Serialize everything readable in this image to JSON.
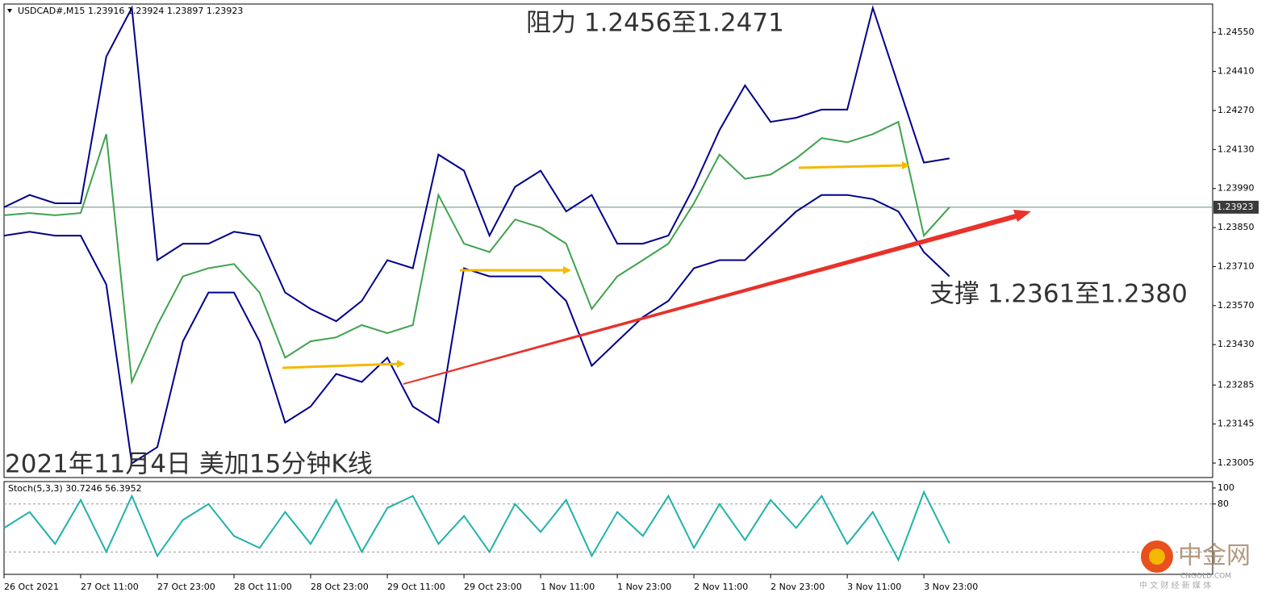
{
  "chart_data": [
    {
      "type": "line",
      "title": "USDCAD#,M15 1.23916 1.23924 1.23897 1.23923",
      "categories": [
        "26 Oct 2021",
        null,
        null,
        "27 Oct 11:00",
        null,
        null,
        "27 Oct 23:00",
        null,
        null,
        "28 Oct 11:00",
        null,
        null,
        "28 Oct 23:00",
        null,
        null,
        "29 Oct 11:00",
        null,
        null,
        "29 Oct 23:00",
        null,
        null,
        "1 Nov 11:00",
        null,
        null,
        "1 Nov 23:00",
        null,
        null,
        "2 Nov 11:00",
        null,
        null,
        "2 Nov 23:00",
        null,
        null,
        "3 Nov 11:00",
        null,
        null,
        "3 Nov 23:00",
        null
      ],
      "series": [
        {
          "color": "#3fa34d",
          "values": [
            1.23894,
            1.23902,
            1.23894,
            1.23902,
            1.24185,
            1.23296,
            1.235,
            1.23675,
            1.23704,
            1.23719,
            1.23617,
            1.23383,
            1.23442,
            1.23456,
            1.235,
            1.23471,
            1.235,
            1.23967,
            1.23792,
            1.23762,
            1.23879,
            1.2385,
            1.23792,
            1.23558,
            1.23675,
            1.23733,
            1.23792,
            1.23937,
            1.24112,
            1.24025,
            1.2404,
            1.24098,
            1.24171,
            1.24156,
            1.24185,
            1.24229,
            1.23821,
            1.23923
          ]
        },
        {
          "color": "#00008b",
          "values": [
            1.23923,
            1.23967,
            1.23937,
            1.23937,
            1.24463,
            1.24638,
            1.23733,
            1.23792,
            1.23792,
            1.23835,
            1.23821,
            1.23617,
            1.23558,
            1.23514,
            1.23587,
            1.23733,
            1.23704,
            1.24112,
            1.24054,
            1.23821,
            1.23996,
            1.24054,
            1.23908,
            1.23967,
            1.23792,
            1.23792,
            1.23821,
            1.23996,
            1.242,
            1.2436,
            1.24229,
            1.24244,
            1.24273,
            1.24273,
            1.24638,
            1.2436,
            1.24083,
            1.24098
          ]
        },
        {
          "color": "#00008b",
          "values": [
            1.23821,
            1.23835,
            1.23821,
            1.23821,
            1.23646,
            1.23004,
            1.23062,
            1.23442,
            1.23617,
            1.23617,
            1.23442,
            1.2315,
            1.23208,
            1.23325,
            1.23296,
            1.23383,
            1.23208,
            1.2315,
            1.23704,
            1.23675,
            1.23675,
            1.23675,
            1.23587,
            1.23354,
            1.23442,
            1.23529,
            1.23587,
            1.23704,
            1.23733,
            1.23733,
            1.23821,
            1.23908,
            1.23967,
            1.23967,
            1.23952,
            1.23908,
            1.23762,
            1.23675
          ]
        }
      ],
      "ylim": [
        1.22953,
        1.24652
      ],
      "yticks": [
        {
          "value": 1.2455,
          "label": "1.24550"
        },
        {
          "value": 1.2441,
          "label": "1.24410"
        },
        {
          "value": 1.2427,
          "label": "1.24270"
        },
        {
          "value": 1.2413,
          "label": "1.24130"
        },
        {
          "value": 1.2399,
          "label": "1.23990"
        },
        {
          "value": 1.2385,
          "label": "1.23850"
        },
        {
          "value": 1.2371,
          "label": "1.23710"
        },
        {
          "value": 1.2357,
          "label": "1.23570"
        },
        {
          "value": 1.2343,
          "label": "1.23430"
        },
        1.23285,
        1.23145,
        1.23005
      ],
      "current_price": 1.23923,
      "annotations": [
        "阻力 1.2456至1.2471",
        "支撑 1.2361至1.2380",
        "2021年11月4日 美加15分钟K线"
      ]
    },
    {
      "type": "line",
      "title": "Stoch(5,3,3) 30.7246 56.3952",
      "series": [
        {
          "color": "#20b2aa",
          "values": [
            50,
            70,
            30,
            85,
            20,
            90,
            15,
            60,
            80,
            40,
            25,
            70,
            30,
            85,
            20,
            75,
            90,
            30,
            65,
            20,
            80,
            45,
            85,
            15,
            70,
            40,
            90,
            25,
            80,
            35,
            85,
            50,
            90,
            30,
            70,
            10,
            95,
            30.7246
          ]
        }
      ],
      "ylim": [
        -8,
        108
      ],
      "yticks": [
        100,
        80
      ],
      "levels": [
        80,
        20
      ]
    }
  ],
  "watermark": {
    "brand": "中金网",
    "site": "CNGOLD.COM",
    "slogan": "中 文 财 经 新 媒 体"
  }
}
